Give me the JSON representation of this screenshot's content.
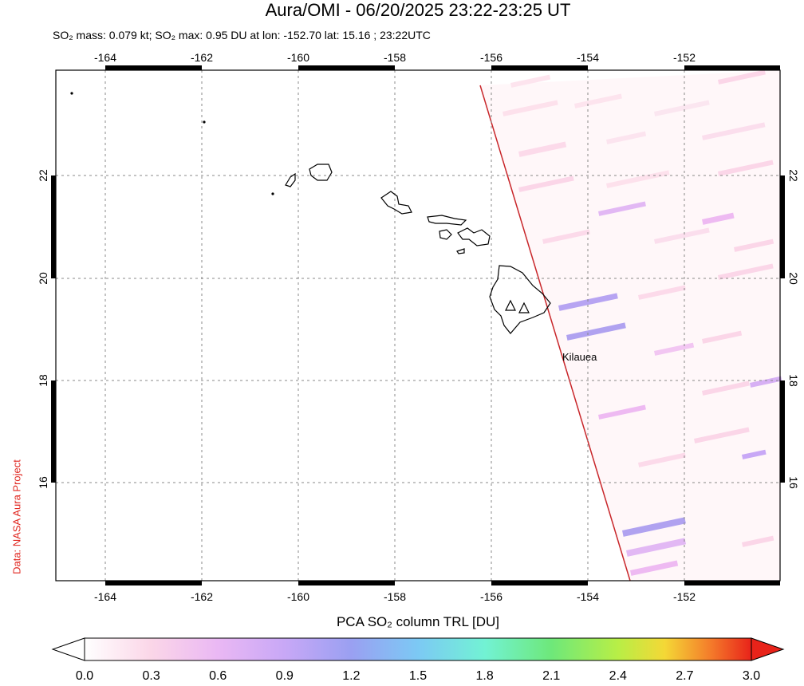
{
  "title": "Aura/OMI - 06/20/2025 23:22-23:25 UT",
  "subtitle": "SO₂ mass: 0.079 kt; SO₂ max: 0.95 DU at lon: -152.70 lat: 15.16 ; 23:22UTC",
  "side_credit": "Data: NASA Aura Project",
  "volcano_label": "Kilauea",
  "colorbar": {
    "title": "PCA SO₂ column TRL [DU]",
    "ticks": [
      "0.0",
      "0.3",
      "0.6",
      "0.9",
      "1.2",
      "1.5",
      "1.8",
      "2.1",
      "2.4",
      "2.7",
      "3.0"
    ],
    "colors": [
      "#ffffff",
      "#fbd6e8",
      "#eab8f4",
      "#c8a8f6",
      "#9aa0f2",
      "#7cc9f4",
      "#72f2d4",
      "#6ee87a",
      "#b8ee46",
      "#f4d836",
      "#f47a2a",
      "#e8231a"
    ]
  },
  "map": {
    "lon_range": [
      -165,
      -150
    ],
    "lat_range": [
      14,
      24
    ],
    "lon_ticks": [
      "-164",
      "-162",
      "-160",
      "-158",
      "-156",
      "-154",
      "-152"
    ],
    "lat_ticks": [
      "16",
      "18",
      "20",
      "22"
    ],
    "grid": "dashed"
  }
}
